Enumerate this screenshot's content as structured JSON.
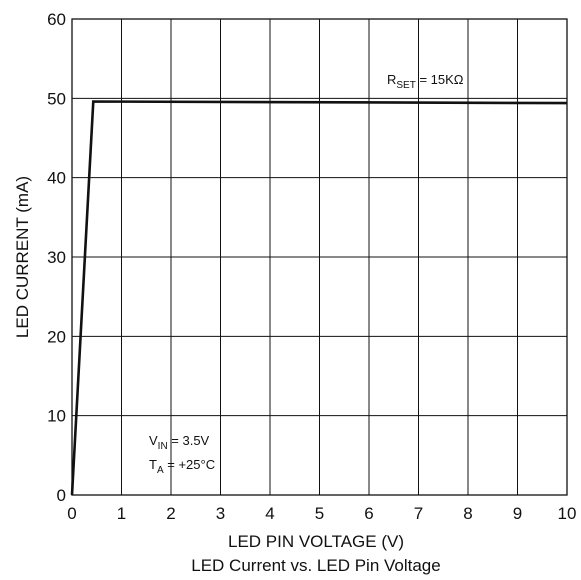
{
  "chart_data": {
    "type": "line",
    "title": "",
    "caption": "LED Current vs. LED Pin Voltage",
    "xlabel": "LED  PIN VOLTAGE (V)",
    "ylabel": "LED CURRENT (mA)",
    "xlim": [
      0,
      10
    ],
    "ylim": [
      0,
      60
    ],
    "x_ticks": [
      0,
      1,
      2,
      3,
      4,
      5,
      6,
      7,
      8,
      9,
      10
    ],
    "y_ticks": [
      0,
      10,
      20,
      30,
      40,
      50,
      60
    ],
    "grid": true,
    "series": [
      {
        "x": [
          0,
          0.43,
          10
        ],
        "y": [
          0,
          49.6,
          49.4
        ],
        "color": "#111111"
      }
    ],
    "annotations": [
      {
        "id": "rset",
        "main": "R",
        "sub": "SET",
        "rest": " = 15KΩ"
      },
      {
        "id": "vin",
        "main": "V",
        "sub": "IN",
        "rest": " = 3.5V"
      },
      {
        "id": "ta",
        "main": "T",
        "sub": "A",
        "rest": " = +25°C"
      }
    ]
  }
}
